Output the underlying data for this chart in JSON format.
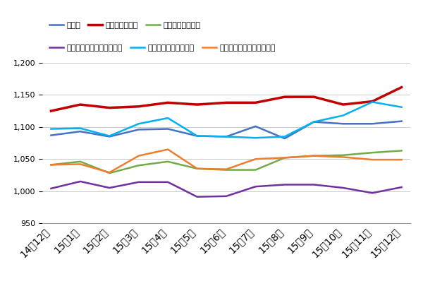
{
  "x_labels": [
    "14年12月",
    "15年1月",
    "15年2月",
    "15年3月",
    "15年4月",
    "15年5月",
    "15年6月",
    "15年7月",
    "15年8月",
    "15年9月",
    "15年10月",
    "15年11月",
    "15年12月"
  ],
  "series": {
    "全職種": {
      "values": [
        1087,
        1093,
        1085,
        1096,
        1097,
        1086,
        1085,
        1101,
        1082,
        1108,
        1105,
        1105,
        1109
      ],
      "color": "#4472C4",
      "linewidth": 1.8
    },
    "フォークリフト": {
      "values": [
        1125,
        1135,
        1130,
        1132,
        1138,
        1135,
        1138,
        1138,
        1147,
        1147,
        1135,
        1140,
        1162
      ],
      "color": "#C00000",
      "linewidth": 2.5
    },
    "検品・検査・調整": {
      "values": [
        1041,
        1046,
        1028,
        1040,
        1046,
        1035,
        1033,
        1033,
        1052,
        1055,
        1056,
        1060,
        1063
      ],
      "color": "#70AD47",
      "linewidth": 1.8
    },
    "仕分け・梱包・ピッキング": {
      "values": [
        1004,
        1015,
        1005,
        1014,
        1014,
        991,
        992,
        1007,
        1010,
        1010,
        1005,
        997,
        1006
      ],
      "color": "#7030A0",
      "linewidth": 1.8
    },
    "部品供給・充填・運搬": {
      "values": [
        1097,
        1098,
        1086,
        1105,
        1114,
        1086,
        1085,
        1083,
        1085,
        1108,
        1118,
        1139,
        1131
      ],
      "color": "#00B0F0",
      "linewidth": 1.8
    },
    "その他軽作業・物流・配送": {
      "values": [
        1041,
        1042,
        1029,
        1055,
        1065,
        1035,
        1034,
        1050,
        1052,
        1055,
        1053,
        1049,
        1049
      ],
      "color": "#ED7D31",
      "linewidth": 1.8
    }
  },
  "ylim": [
    950,
    1200
  ],
  "yticks": [
    950,
    1000,
    1050,
    1100,
    1150,
    1200
  ],
  "legend_order": [
    "全職種",
    "フォークリフト",
    "検品・検査・調整",
    "仕分け・梱包・ピッキング",
    "部品供給・充填・運搬",
    "その他軽作業・物流・配送"
  ],
  "legend_row1": [
    "全職種",
    "フォークリフト",
    "検品・検査・調整"
  ],
  "legend_row2": [
    "仕分け・梱包・ピッキング",
    "部品供給・充填・運搬",
    "その他軽作業・物流・配送"
  ],
  "background_color": "#FFFFFF",
  "grid_color": "#CCCCCC"
}
